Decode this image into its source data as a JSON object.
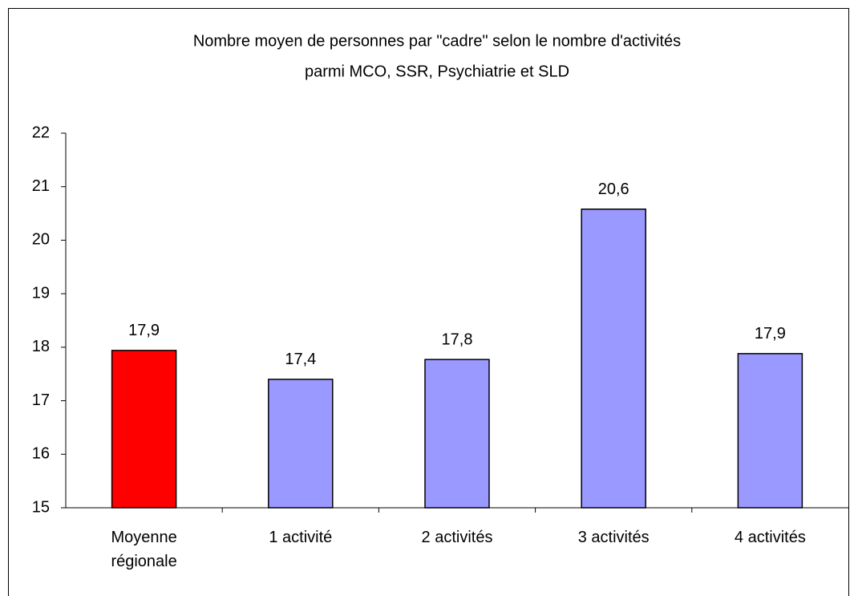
{
  "chart_data": {
    "type": "bar",
    "title": [
      "Nombre moyen de personnes par \"cadre\" selon le nombre d'activités",
      "parmi MCO, SSR, Psychiatrie et SLD"
    ],
    "categories": [
      "Moyenne régionale",
      "1 activité",
      "2 activités",
      "3 activités",
      "4 activités"
    ],
    "values": [
      17.94,
      17.4,
      17.77,
      20.58,
      17.88
    ],
    "value_labels": [
      "17,9",
      "17,4",
      "17,8",
      "20,6",
      "17,9"
    ],
    "colors": [
      "#ff0000",
      "#9999ff",
      "#9999ff",
      "#9999ff",
      "#9999ff"
    ],
    "ylim": [
      15,
      22
    ],
    "yticks": [
      15,
      16,
      17,
      18,
      19,
      20,
      21,
      22
    ],
    "grid": false
  }
}
